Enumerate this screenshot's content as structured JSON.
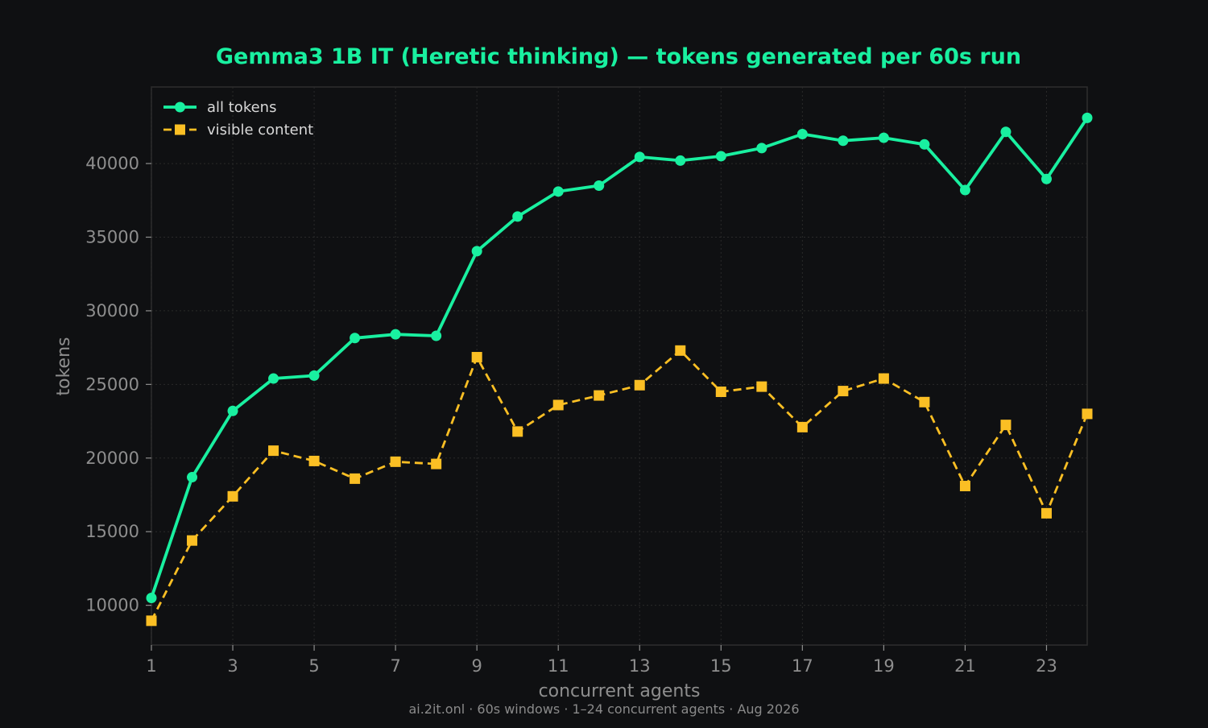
{
  "chart_data": {
    "type": "line",
    "title": "Gemma3 1B IT (Heretic thinking) — tokens generated per 60s run",
    "xlabel": "concurrent agents",
    "ylabel": "tokens",
    "footer": "ai.2it.onl · 60s windows · 1–24 concurrent agents · Aug 2026",
    "x": [
      1,
      2,
      3,
      4,
      5,
      6,
      7,
      8,
      9,
      10,
      11,
      12,
      13,
      14,
      15,
      16,
      17,
      18,
      19,
      20,
      21,
      22,
      23,
      24
    ],
    "xlim": [
      1,
      24
    ],
    "ylim": [
      7300,
      45200
    ],
    "x_ticks": [
      1,
      3,
      5,
      7,
      9,
      11,
      13,
      15,
      17,
      19,
      21,
      23
    ],
    "y_ticks": [
      10000,
      15000,
      20000,
      25000,
      30000,
      35000,
      40000
    ],
    "grid": true,
    "legend_position": "top-left",
    "series": [
      {
        "name": "all tokens",
        "color": "#19f0a0",
        "marker": "circle",
        "line_style": "solid",
        "values": [
          10500,
          18700,
          23200,
          25400,
          25600,
          28150,
          28400,
          28300,
          34050,
          36400,
          38100,
          38500,
          40450,
          40200,
          40500,
          41050,
          42000,
          41550,
          41750,
          41300,
          38200,
          42150,
          38950,
          43100
        ]
      },
      {
        "name": "visible content",
        "color": "#fbbf24",
        "marker": "square",
        "line_style": "dashed",
        "values": [
          8950,
          14400,
          17400,
          20500,
          19800,
          18600,
          19750,
          19600,
          26850,
          21800,
          23600,
          24250,
          24950,
          27300,
          24500,
          24850,
          22100,
          24550,
          25400,
          23800,
          18100,
          22250,
          16250,
          23000
        ]
      }
    ]
  }
}
